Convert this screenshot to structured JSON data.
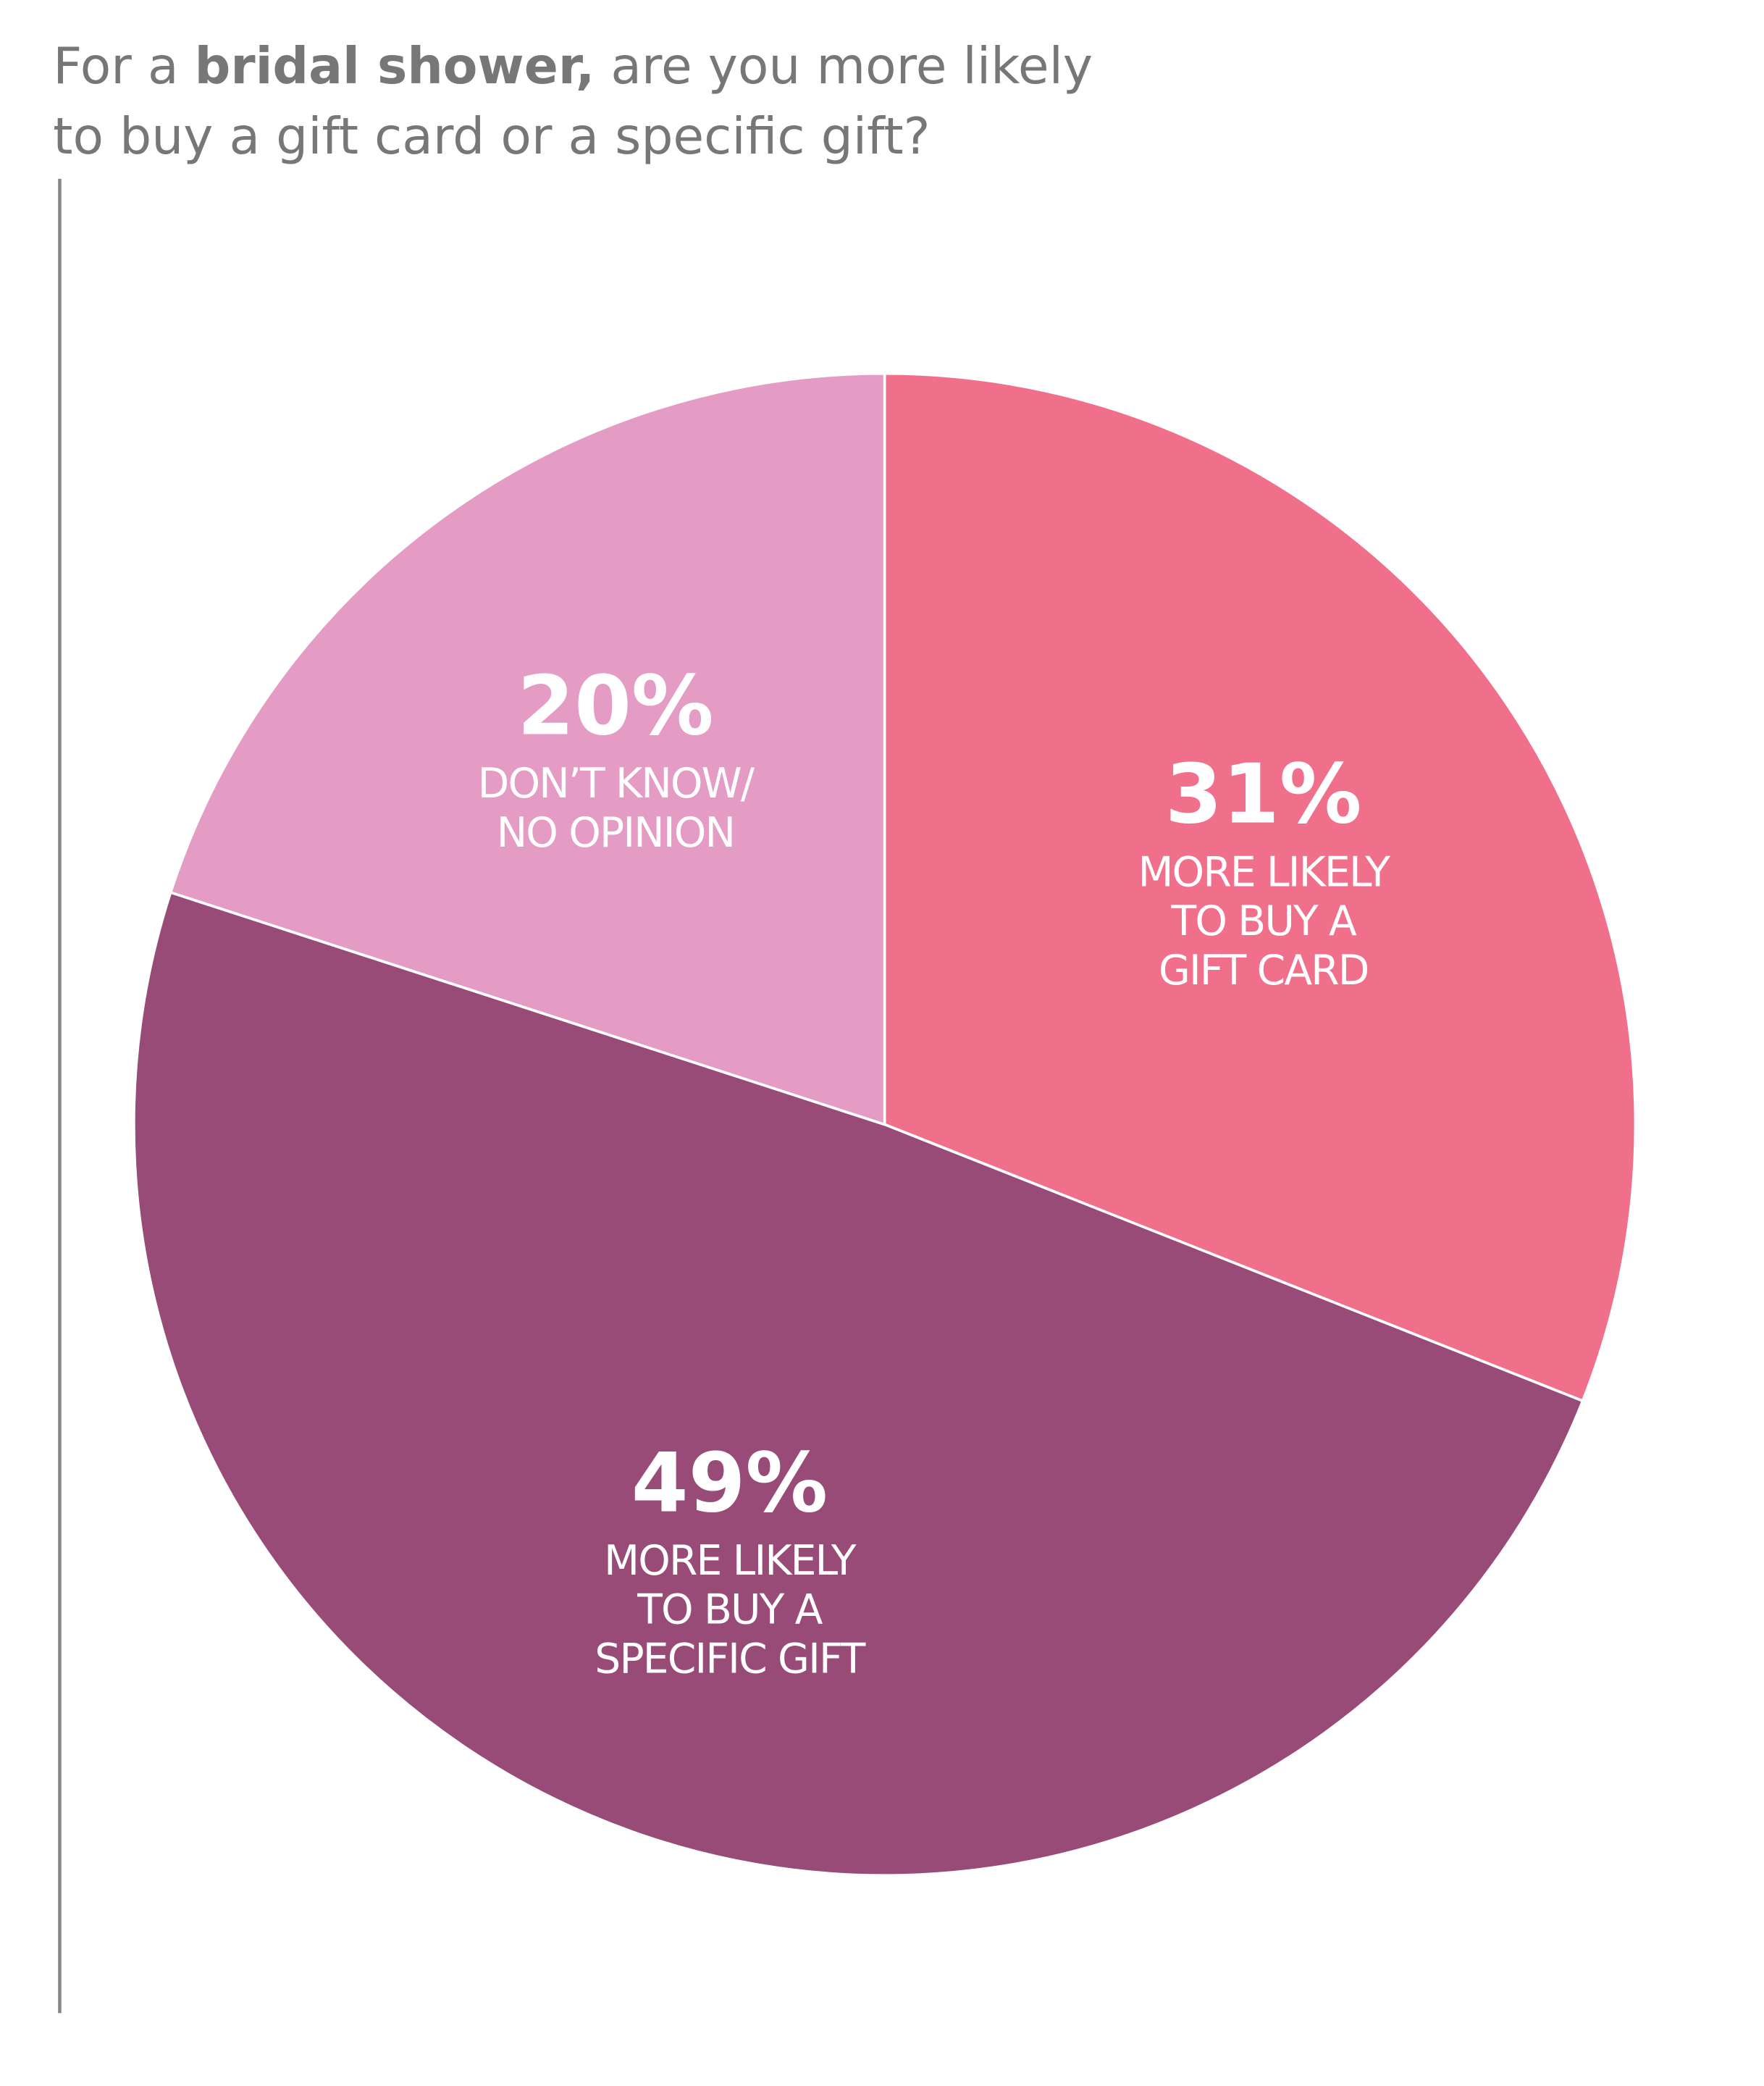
{
  "chart_data": {
    "type": "pie",
    "title": [
      [
        {
          "text": "For a ",
          "bold": false
        },
        {
          "text": "bridal shower,",
          "bold": true
        },
        {
          "text": " are you more likely",
          "bold": false
        }
      ],
      [
        {
          "text": "to buy a gift card or a specific gift?",
          "bold": false
        }
      ]
    ],
    "categories": [
      [
        "MORE LIKELY",
        "TO BUY A",
        "GIFT CARD"
      ],
      [
        "MORE LIKELY",
        "TO BUY A",
        "SPECIFIC GIFT"
      ],
      [
        "DON’T KNOW/",
        "NO OPINION"
      ]
    ],
    "values": [
      31,
      49,
      20
    ],
    "value_labels": [
      "31%",
      "49%",
      "20%"
    ],
    "colors": [
      "#f0708c",
      "#984b77",
      "#e49cc4"
    ]
  }
}
